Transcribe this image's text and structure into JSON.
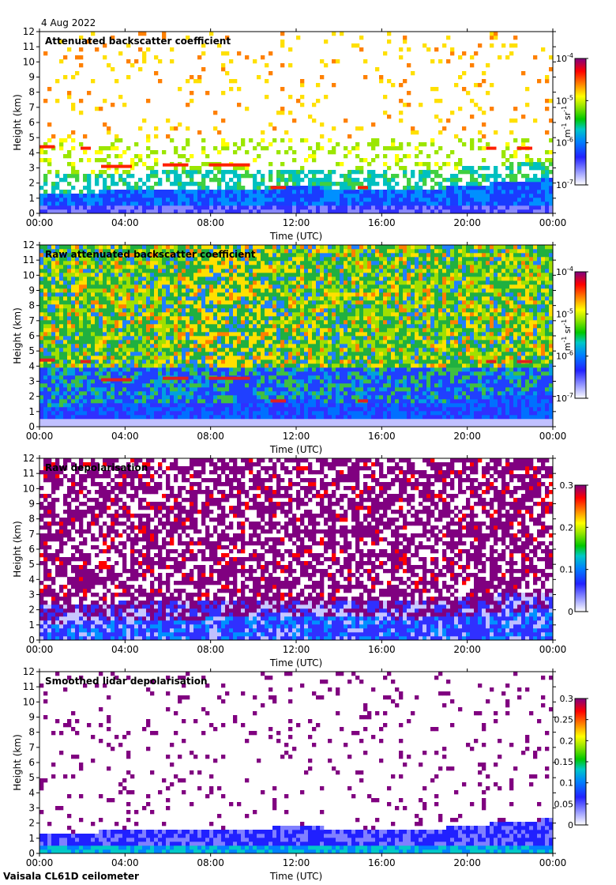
{
  "figure": {
    "date": "4 Aug 2022",
    "footer": "Vaisala CL61D ceilometer"
  },
  "chart_data": [
    {
      "type": "heatmap",
      "title": "Attenuated backscatter coefficient",
      "xlabel": "Time (UTC)",
      "ylabel": "Height (km)",
      "xticks": [
        "00:00",
        "04:00",
        "08:00",
        "12:00",
        "16:00",
        "20:00",
        "00:00"
      ],
      "ylim": [
        0,
        12
      ],
      "yticks": [
        0,
        1,
        2,
        3,
        4,
        5,
        6,
        7,
        8,
        9,
        10,
        11,
        12
      ],
      "colorbar": {
        "scale": "log",
        "unit_base": "m",
        "unit_exp": "-1",
        "unit_base2": "sr",
        "unit_exp2": "-1",
        "ticks": [
          {
            "base": "10",
            "exp": "-7"
          },
          {
            "base": "10",
            "exp": "-6"
          },
          {
            "base": "10",
            "exp": "-5"
          },
          {
            "base": "10",
            "exp": "-4"
          }
        ]
      }
    },
    {
      "type": "heatmap",
      "title": "Raw attenuated backscatter coefficient",
      "xlabel": "Time (UTC)",
      "ylabel": "Height (km)",
      "xticks": [
        "00:00",
        "04:00",
        "08:00",
        "12:00",
        "16:00",
        "20:00",
        "00:00"
      ],
      "ylim": [
        0,
        12
      ],
      "yticks": [
        0,
        1,
        2,
        3,
        4,
        5,
        6,
        7,
        8,
        9,
        10,
        11,
        12
      ],
      "colorbar": {
        "scale": "log",
        "unit_base": "m",
        "unit_exp": "-1",
        "unit_base2": "sr",
        "unit_exp2": "-1",
        "ticks": [
          {
            "base": "10",
            "exp": "-7"
          },
          {
            "base": "10",
            "exp": "-6"
          },
          {
            "base": "10",
            "exp": "-5"
          },
          {
            "base": "10",
            "exp": "-4"
          }
        ]
      }
    },
    {
      "type": "heatmap",
      "title": "Raw depolarisation",
      "xlabel": "Time (UTC)",
      "ylabel": "Height (km)",
      "xticks": [
        "00:00",
        "04:00",
        "08:00",
        "12:00",
        "16:00",
        "20:00",
        "00:00"
      ],
      "ylim": [
        0,
        12
      ],
      "yticks": [
        0,
        1,
        2,
        3,
        4,
        5,
        6,
        7,
        8,
        9,
        10,
        11,
        12
      ],
      "colorbar": {
        "scale": "linear",
        "ticks": [
          "0",
          "0.1",
          "0.2",
          "0.3"
        ]
      }
    },
    {
      "type": "heatmap",
      "title": "Smoothed lidar depolarisation",
      "xlabel": "Time (UTC)",
      "ylabel": "Height (km)",
      "xticks": [
        "00:00",
        "04:00",
        "08:00",
        "12:00",
        "16:00",
        "20:00",
        "00:00"
      ],
      "ylim": [
        0,
        12
      ],
      "yticks": [
        0,
        1,
        2,
        3,
        4,
        5,
        6,
        7,
        8,
        9,
        10,
        11,
        12
      ],
      "colorbar": {
        "scale": "linear",
        "ticks": [
          "0",
          "0.05",
          "0.1",
          "0.15",
          "0.2",
          "0.25",
          "0.3"
        ]
      }
    }
  ]
}
